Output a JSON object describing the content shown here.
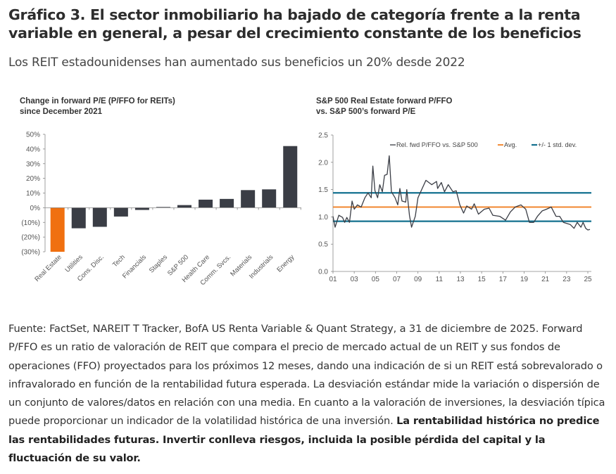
{
  "title": "Gráfico 3. El sector inmobiliario ha bajado de categoría frente a la renta variable en general, a pesar del crecimiento constante de los beneficios",
  "subtitle": "Los REIT estadounidenses han aumentado sus beneficios un 20% desde 2022",
  "chart_data": [
    {
      "type": "bar",
      "title": "Change in forward P/E (P/FFO for REITs) since December 2021",
      "title_lines": [
        "Change in forward P/E (P/FFO for REITs)",
        "since December 2021"
      ],
      "categories": [
        "Real Estate",
        "Utilities",
        "Cons. Disc.",
        "Tech",
        "Financials",
        "Staples",
        "S&P 500",
        "Health Care",
        "Comm. Svcs.",
        "Materials",
        "Industrials",
        "Energy"
      ],
      "values": [
        -30,
        -14,
        -13,
        -6,
        -1.5,
        0.5,
        1.8,
        5.5,
        6,
        12,
        12.5,
        42
      ],
      "unit": "%",
      "ylim": [
        -30,
        50
      ],
      "yticks": [
        "50%",
        "40%",
        "30%",
        "20%",
        "10%",
        "0%",
        "(10%)",
        "(20%)",
        "(30%)"
      ],
      "ytick_values": [
        50,
        40,
        30,
        20,
        10,
        0,
        -10,
        -20,
        -30
      ],
      "colors": {
        "highlight": "#f07010",
        "default": "#3a3d45"
      },
      "highlight_category": "Real Estate",
      "grid": false
    },
    {
      "type": "line",
      "title": "S&P 500 Real Estate forward P/FFO vs. S&P 500's forward P/E",
      "title_lines": [
        "S&P 500 Real Estate forward P/FFO",
        "vs. S&P 500’s forward P/E"
      ],
      "xlim": [
        2001,
        2025.4
      ],
      "ylim": [
        0,
        2.5
      ],
      "xticks": [
        "01",
        "03",
        "05",
        "07",
        "09",
        "11",
        "13",
        "15",
        "17",
        "19",
        "21",
        "23",
        "25"
      ],
      "xtick_values": [
        2001,
        2003,
        2005,
        2007,
        2009,
        2011,
        2013,
        2015,
        2017,
        2019,
        2021,
        2023,
        2025
      ],
      "yticks": [
        "2.5",
        "2.0",
        "1.5",
        "1.0",
        "0.5",
        "0.0"
      ],
      "ytick_values": [
        2.5,
        2.0,
        1.5,
        1.0,
        0.5,
        0.0
      ],
      "legend_position": "top-right",
      "grid": false,
      "series": [
        {
          "name": "Rel. fwd P/FFO vs. S&P 500",
          "color": "#3a3d45",
          "x": [
            2001.0,
            2001.2,
            2001.55,
            2001.9,
            2002.1,
            2002.3,
            2002.55,
            2002.8,
            2003.0,
            2003.3,
            2003.65,
            2004.0,
            2004.3,
            2004.6,
            2004.75,
            2004.95,
            2005.2,
            2005.4,
            2005.65,
            2005.85,
            2006.1,
            2006.3,
            2006.5,
            2006.85,
            2007.1,
            2007.3,
            2007.5,
            2007.85,
            2007.95,
            2008.2,
            2008.4,
            2008.75,
            2009.0,
            2009.4,
            2009.75,
            2010.3,
            2010.75,
            2010.85,
            2011.2,
            2011.5,
            2011.85,
            2012.3,
            2012.6,
            2012.95,
            2013.3,
            2013.6,
            2014.05,
            2014.3,
            2014.7,
            2015.25,
            2015.7,
            2016.05,
            2016.7,
            2017.25,
            2017.7,
            2018.15,
            2018.7,
            2019.15,
            2019.5,
            2019.9,
            2020.25,
            2020.7,
            2021.1,
            2021.55,
            2022.0,
            2022.35,
            2022.7,
            2023.35,
            2023.7,
            2024.0,
            2024.35,
            2024.55,
            2024.8,
            2025.0,
            2025.2
          ],
          "y": [
            1.01,
            0.81,
            1.03,
            0.99,
            0.9,
            0.99,
            0.9,
            1.29,
            1.14,
            1.22,
            1.18,
            1.35,
            1.44,
            1.35,
            1.93,
            1.48,
            1.35,
            1.59,
            1.46,
            1.76,
            1.78,
            2.12,
            1.46,
            1.35,
            1.22,
            1.52,
            1.29,
            1.27,
            1.5,
            1.03,
            0.81,
            1.01,
            1.35,
            1.52,
            1.67,
            1.59,
            1.65,
            1.52,
            1.63,
            1.46,
            1.59,
            1.46,
            1.48,
            1.22,
            1.07,
            1.2,
            1.14,
            1.24,
            1.05,
            1.14,
            1.16,
            1.03,
            1.01,
            0.94,
            1.09,
            1.18,
            1.22,
            1.14,
            0.9,
            0.9,
            1.01,
            1.11,
            1.14,
            1.18,
            1.01,
            1.01,
            0.9,
            0.86,
            0.79,
            0.9,
            0.81,
            0.9,
            0.79,
            0.76,
            0.77
          ]
        },
        {
          "name": "Avg.",
          "color": "#f07f22",
          "value": 1.18
        },
        {
          "name": "+/- 1 std. dev.",
          "color": "#13708f",
          "values": [
            1.44,
            0.92
          ]
        }
      ]
    }
  ],
  "footer": {
    "text": "Fuente: FactSet, NAREIT T Tracker, BofA US Renta Variable & Quant Strategy, a 31 de diciembre de 2025. Forward P/FFO es un ratio de valoración de REIT que compara el precio de mercado actual de un REIT y sus fondos de operaciones (FFO) proyectados para los próximos 12 meses, dando una indicación de si un REIT está sobrevalorado o infravalorado en función de la rentabilidad futura esperada. La desviación estándar mide la variación o dispersión de un conjunto de valores/datos en relación con una media. En cuanto a la valoración de inversiones, la desviación típica puede proporcionar un indicador de la volatilidad histórica de una inversión. ",
    "bold": "La rentabilidad histórica no predice las rentabilidades futuras. Invertir conlleva riesgos, incluida la posible pérdida del capital y la fluctuación de su valor."
  }
}
